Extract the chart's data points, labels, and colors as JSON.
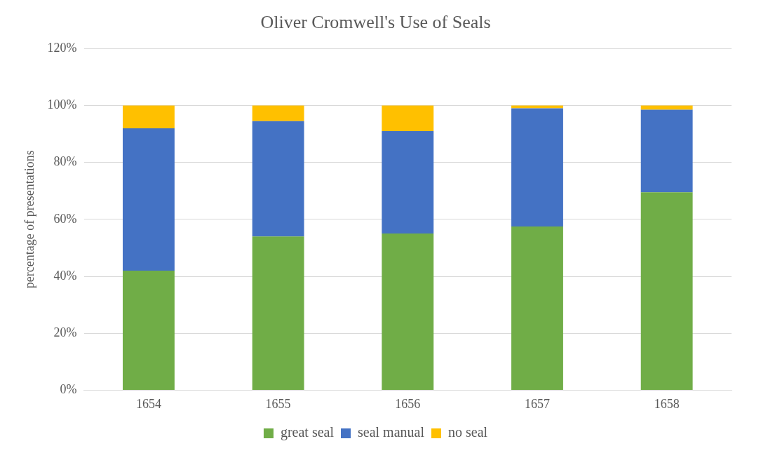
{
  "chart_data": {
    "type": "bar",
    "stacked": true,
    "title": "Oliver Cromwell's Use of Seals",
    "ylabel": "percentage of presentations",
    "categories": [
      "1654",
      "1655",
      "1656",
      "1657",
      "1658"
    ],
    "series": [
      {
        "name": "great seal",
        "color": "#70ad47",
        "values": [
          42,
          54,
          55,
          57.5,
          69.5
        ]
      },
      {
        "name": "seal manual",
        "color": "#4472c4",
        "values": [
          50,
          40.5,
          36,
          41.5,
          29
        ]
      },
      {
        "name": "no seal",
        "color": "#ffc000",
        "values": [
          8,
          5.5,
          9,
          1,
          1.5
        ]
      }
    ],
    "ylim": [
      0,
      120
    ],
    "yticks": [
      {
        "value": 0,
        "label": "0%"
      },
      {
        "value": 20,
        "label": "20%"
      },
      {
        "value": 40,
        "label": "40%"
      },
      {
        "value": 60,
        "label": "60%"
      },
      {
        "value": 80,
        "label": "80%"
      },
      {
        "value": 100,
        "label": "100%"
      },
      {
        "value": 120,
        "label": "120%"
      }
    ],
    "grid": "y",
    "legend": "bottom"
  }
}
